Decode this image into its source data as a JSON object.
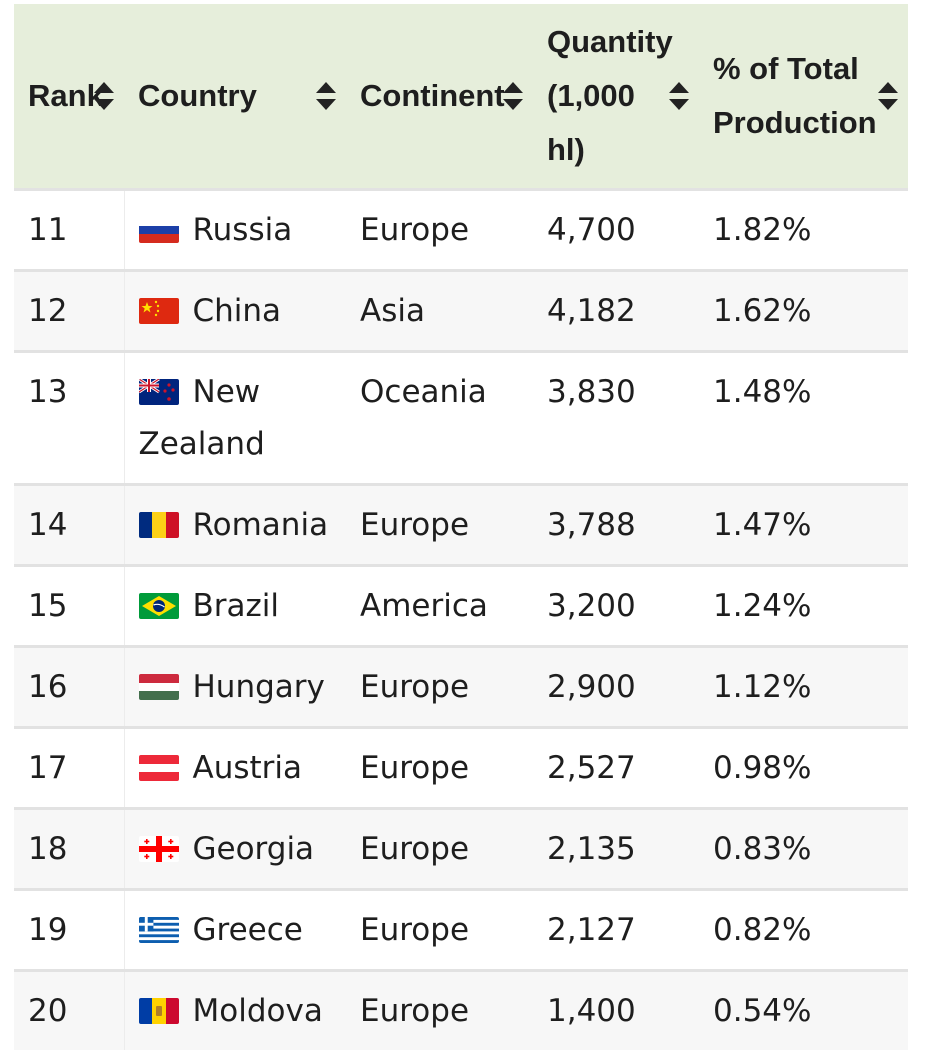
{
  "table": {
    "headers": {
      "rank": "Rank",
      "country": "Country",
      "continent": "Continent",
      "quantity": "Quantity (1,000 hl)",
      "percent": "% of Total Production"
    },
    "rows": [
      {
        "rank": "11",
        "country": "Russia",
        "flag": "russia-flag",
        "continent": "Europe",
        "quantity": "4,700",
        "percent": "1.82%"
      },
      {
        "rank": "12",
        "country": "China",
        "flag": "china-flag",
        "continent": "Asia",
        "quantity": "4,182",
        "percent": "1.62%"
      },
      {
        "rank": "13",
        "country": "New Zealand",
        "flag": "new-zealand-flag",
        "continent": "Oceania",
        "quantity": "3,830",
        "percent": "1.48%"
      },
      {
        "rank": "14",
        "country": "Romania",
        "flag": "romania-flag",
        "continent": "Europe",
        "quantity": "3,788",
        "percent": "1.47%"
      },
      {
        "rank": "15",
        "country": "Brazil",
        "flag": "brazil-flag",
        "continent": "America",
        "quantity": "3,200",
        "percent": "1.24%"
      },
      {
        "rank": "16",
        "country": "Hungary",
        "flag": "hungary-flag",
        "continent": "Europe",
        "quantity": "2,900",
        "percent": "1.12%"
      },
      {
        "rank": "17",
        "country": "Austria",
        "flag": "austria-flag",
        "continent": "Europe",
        "quantity": "2,527",
        "percent": "0.98%"
      },
      {
        "rank": "18",
        "country": "Georgia",
        "flag": "georgia-flag",
        "continent": "Europe",
        "quantity": "2,135",
        "percent": "0.83%"
      },
      {
        "rank": "19",
        "country": "Greece",
        "flag": "greece-flag",
        "continent": "Europe",
        "quantity": "2,127",
        "percent": "0.82%"
      },
      {
        "rank": "20",
        "country": "Moldova",
        "flag": "moldova-flag",
        "continent": "Europe",
        "quantity": "1,400",
        "percent": "0.54%"
      }
    ]
  },
  "colors": {
    "header_bg": "#e6eedb",
    "row_alt_bg": "#f7f7f7",
    "row_border": "#e2e2e2"
  }
}
